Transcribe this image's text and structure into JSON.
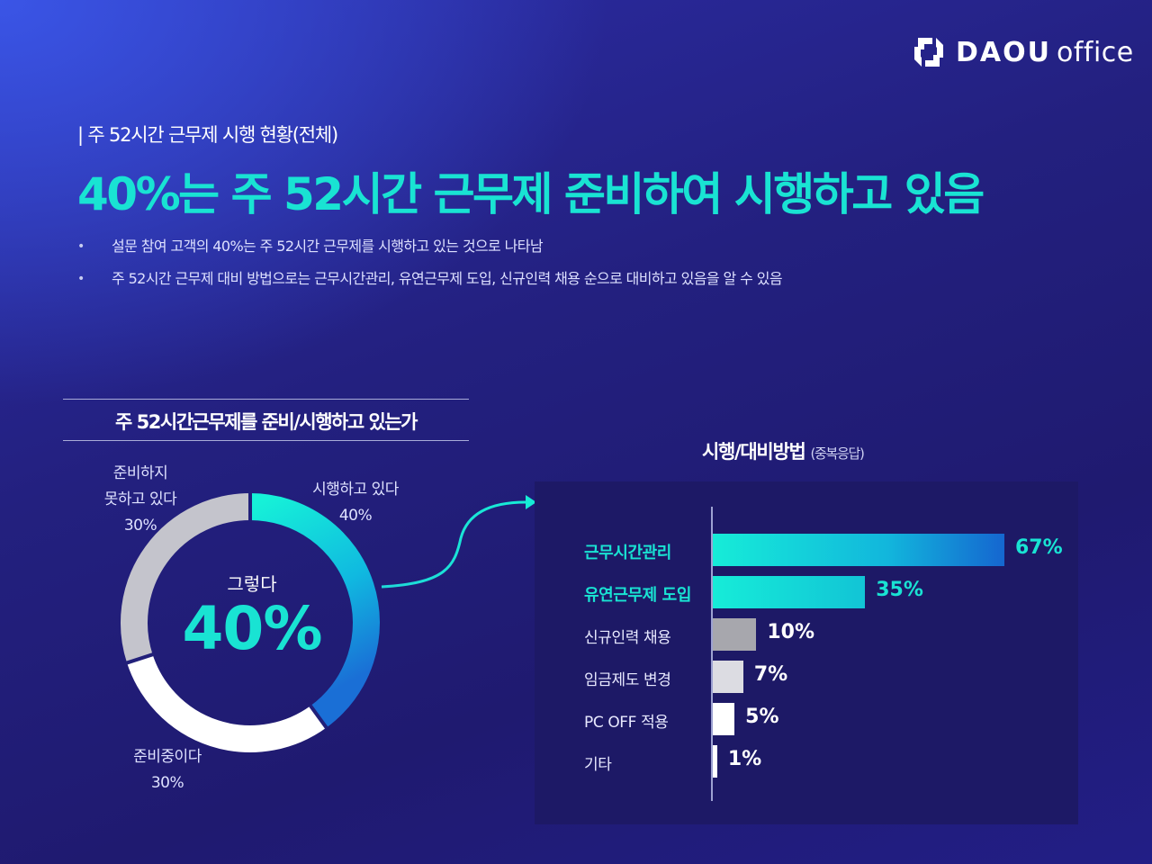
{
  "brand": {
    "bold": "DAOU",
    "light": "office",
    "icon": "daou-logo-icon"
  },
  "section_label": "| 주 52시간 근무제 시행 현황(전체)",
  "headline": "40%는 주 52시간 근무제 준비하여 시행하고 있음",
  "bullets": [
    "설문 참여 고객의 40%는 주 52시간 근무제를 시행하고 있는 것으로 나타남",
    "주 52시간 근무제 대비 방법으로는 근무시간관리, 유연근무제 도입, 신규인력 채용 순으로 대비하고 있음을 알 수 있음"
  ],
  "colors": {
    "accent": "#19e3d3",
    "white": "#ffffff",
    "gray": "#c4c4cc"
  },
  "chart_data": [
    {
      "type": "pie",
      "title": "주 52시간근무제를 준비/시행하고 있는가",
      "center_caption": "그렇다",
      "center_value": "40%",
      "slices": [
        {
          "line1": "시행하고 있다",
          "line2": "",
          "pct_label": "40%",
          "value": 40
        },
        {
          "line1": "준비중이다",
          "line2": "",
          "pct_label": "30%",
          "value": 30
        },
        {
          "line1": "준비하지",
          "line2": "못하고 있다",
          "pct_label": "30%",
          "value": 30
        }
      ]
    },
    {
      "type": "bar",
      "title": "시행/대비방법",
      "title_note": "(중복응답)",
      "xlim": [
        0,
        67
      ],
      "items": [
        {
          "label": "근무시간관리",
          "value": 67,
          "value_label": "67%"
        },
        {
          "label": "유연근무제 도입",
          "value": 35,
          "value_label": "35%"
        },
        {
          "label": "신규인력 채용",
          "value": 10,
          "value_label": "10%"
        },
        {
          "label": "임금제도 변경",
          "value": 7,
          "value_label": "7%"
        },
        {
          "label": "PC OFF 적용",
          "value": 5,
          "value_label": "5%"
        },
        {
          "label": "기타",
          "value": 1,
          "value_label": "1%"
        }
      ]
    }
  ]
}
